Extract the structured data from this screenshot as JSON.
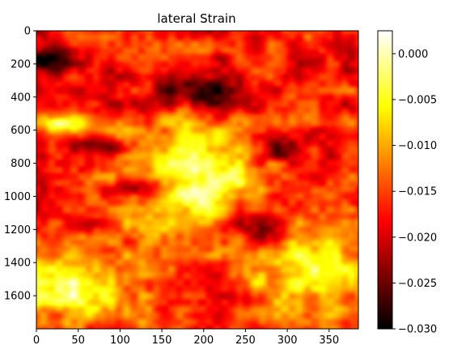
{
  "chart_data": {
    "type": "heatmap",
    "title": "lateral Strain",
    "xlabel": "",
    "ylabel": "",
    "x_range": [
      0,
      385
    ],
    "y_range": [
      0,
      1800
    ],
    "y_inverted": true,
    "x_ticks": [
      "0",
      "50",
      "100",
      "150",
      "200",
      "250",
      "300",
      "350"
    ],
    "y_ticks": [
      "0",
      "200",
      "400",
      "600",
      "800",
      "1000",
      "1200",
      "1400",
      "1600"
    ],
    "colorbar": {
      "colormap": "hot",
      "vmin": -0.03,
      "vmax": 0.0025,
      "ticks": [
        "0.000",
        "−0.005",
        "−0.010",
        "−0.015",
        "−0.020",
        "−0.025",
        "−0.030"
      ],
      "tick_values": [
        0.0,
        -0.005,
        -0.01,
        -0.015,
        -0.02,
        -0.025,
        -0.03
      ]
    },
    "field_features": [
      {
        "x": 190,
        "y": 900,
        "sx": 55,
        "sy": 230,
        "value": 0.0,
        "note": "central bright (near zero) region"
      },
      {
        "x": 200,
        "y": 370,
        "sx": 40,
        "sy": 70,
        "value": -0.03,
        "note": "dark region top-center"
      },
      {
        "x": 80,
        "y": 700,
        "sx": 30,
        "sy": 40,
        "value": -0.027
      },
      {
        "x": 120,
        "y": 950,
        "sx": 30,
        "sy": 40,
        "value": -0.027
      },
      {
        "x": 20,
        "y": 180,
        "sx": 30,
        "sy": 60,
        "value": -0.028
      },
      {
        "x": 265,
        "y": 1180,
        "sx": 25,
        "sy": 120,
        "value": -0.026
      },
      {
        "x": 290,
        "y": 720,
        "sx": 20,
        "sy": 60,
        "value": -0.026
      },
      {
        "x": 40,
        "y": 1550,
        "sx": 60,
        "sy": 150,
        "value": -0.003,
        "note": "bright bottom-left"
      },
      {
        "x": 330,
        "y": 1450,
        "sx": 50,
        "sy": 200,
        "value": -0.004,
        "note": "bright bottom-right"
      },
      {
        "x": 40,
        "y": 560,
        "sx": 25,
        "sy": 40,
        "value": -0.004
      }
    ],
    "background_value": -0.017
  }
}
